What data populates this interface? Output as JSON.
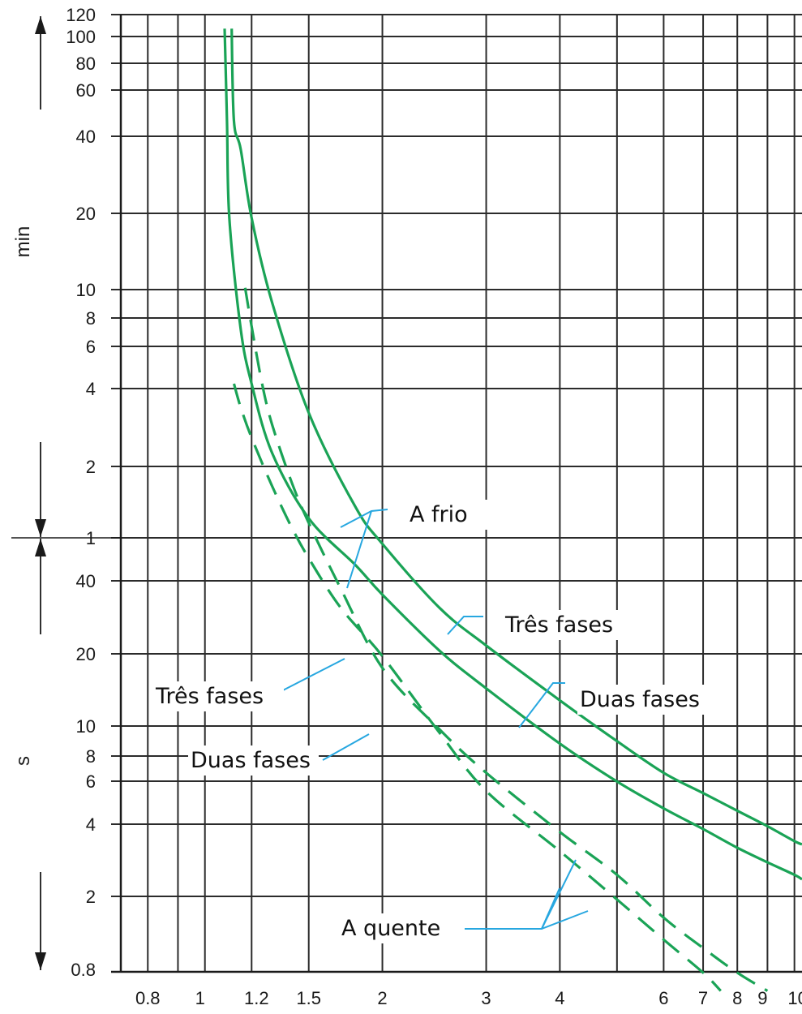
{
  "chart_data": {
    "type": "line",
    "title": "",
    "xlabel": "",
    "ylabel": "",
    "x_scale": "log",
    "y_scale": "log",
    "xlim": [
      0.72,
      10.3
    ],
    "grid": true,
    "x_ticks": [
      "0.8",
      "1",
      "1.2",
      "1.5",
      "2",
      "3",
      "4",
      "6",
      "7",
      "8",
      "9",
      "10"
    ],
    "y_axis_groups": [
      {
        "unit": "min",
        "ticks": [
          "120",
          "100",
          "80",
          "60",
          "40",
          "20",
          "10",
          "8",
          "6",
          "4"
        ]
      },
      {
        "unit": "",
        "ticks": [
          "2",
          "1"
        ]
      },
      {
        "unit": "s",
        "ticks": [
          "40",
          "20",
          "10",
          "8",
          "6",
          "4",
          "2",
          "0.8"
        ]
      }
    ],
    "series": [
      {
        "name": "A frio – Três fases",
        "style": "solid",
        "color": "#1aa356",
        "x": [
          1.11,
          1.12,
          1.15,
          1.2,
          1.3,
          1.5,
          1.8,
          2.0,
          2.5,
          3.0,
          4.0,
          5.0,
          6.0,
          7.0,
          8.0,
          9.0,
          10.0,
          10.3
        ],
        "y_seconds": [
          7200,
          3000,
          2300,
          1200,
          540,
          190,
          78,
          55,
          30,
          21,
          12.5,
          8.5,
          6.3,
          5.2,
          4.4,
          3.8,
          3.3,
          3.2
        ]
      },
      {
        "name": "A frio – Duas fases",
        "style": "solid",
        "color": "#1aa356",
        "x": [
          1.08,
          1.09,
          1.1,
          1.15,
          1.2,
          1.3,
          1.5,
          1.8,
          2.0,
          2.5,
          3.0,
          4.0,
          5.0,
          6.0,
          7.0,
          8.0,
          9.0,
          10.0,
          10.3
        ],
        "y_seconds": [
          7200,
          3000,
          1200,
          420,
          250,
          130,
          70,
          45,
          34,
          20,
          14,
          8.3,
          5.8,
          4.5,
          3.7,
          3.1,
          2.7,
          2.4,
          2.3
        ]
      },
      {
        "name": "A quente – Três fases",
        "style": "dashed",
        "color": "#1aa356",
        "x": [
          1.17,
          1.2,
          1.25,
          1.3,
          1.4,
          1.5,
          1.7,
          2.0,
          2.5,
          3.0,
          4.0,
          5.0,
          6.0,
          7.0,
          8.0,
          9.0
        ],
        "y_seconds": [
          620,
          430,
          250,
          170,
          100,
          67,
          36,
          17,
          9.5,
          6.3,
          3.6,
          2.4,
          1.6,
          1.2,
          0.95,
          0.8
        ]
      },
      {
        "name": "A quente – Duas fases",
        "style": "dashed",
        "color": "#1aa356",
        "x": [
          1.12,
          1.15,
          1.2,
          1.3,
          1.4,
          1.5,
          1.7,
          2.0,
          2.5,
          3.0,
          4.0,
          5.0,
          6.0,
          7.0,
          7.5
        ],
        "y_seconds": [
          250,
          200,
          150,
          95,
          65,
          48,
          30,
          19,
          9.2,
          5.3,
          3.0,
          1.9,
          1.3,
          0.95,
          0.8
        ]
      }
    ],
    "annotations": [
      "A frio",
      "Três fases",
      "Duas fases",
      "Três fases",
      "Duas fases",
      "A quente"
    ]
  }
}
